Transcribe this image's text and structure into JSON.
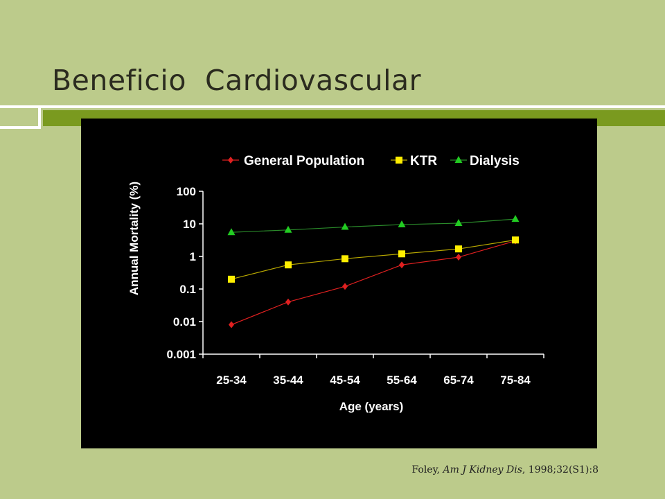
{
  "slide": {
    "title": "Beneficio  Cardiovascular",
    "citation": {
      "author": "Foley, ",
      "journal": "Am J Kidney Dis",
      "details": ", 1998;32(S1):8"
    }
  },
  "colors": {
    "background": "#bccb8b",
    "accent_bar": "#7a9a1f",
    "chart_bg": "#000000",
    "general_population": "#e02020",
    "ktr": "#ffee00",
    "dialysis": "#22cc22"
  },
  "chart_data": {
    "type": "line",
    "title": "",
    "xlabel": "Age (years)",
    "ylabel": "Annual Mortality (%)",
    "yscale": "log",
    "ylim": [
      0.001,
      100
    ],
    "yticks": [
      "0.001",
      "0.01",
      "0.1",
      "1",
      "10",
      "100"
    ],
    "categories": [
      "25-34",
      "35-44",
      "45-54",
      "55-64",
      "65-74",
      "75-84"
    ],
    "legend_position": "top",
    "grid": false,
    "series": [
      {
        "name": "General Population",
        "marker": "diamond",
        "color": "#e02020",
        "values": [
          0.008,
          0.04,
          0.12,
          0.55,
          0.95,
          3.0
        ]
      },
      {
        "name": "KTR",
        "marker": "square",
        "color": "#ffee00",
        "values": [
          0.2,
          0.55,
          0.85,
          1.2,
          1.7,
          3.2
        ]
      },
      {
        "name": "Dialysis",
        "marker": "triangle",
        "color": "#22cc22",
        "values": [
          5.5,
          6.5,
          8.0,
          9.5,
          10.5,
          14.0
        ]
      }
    ]
  }
}
